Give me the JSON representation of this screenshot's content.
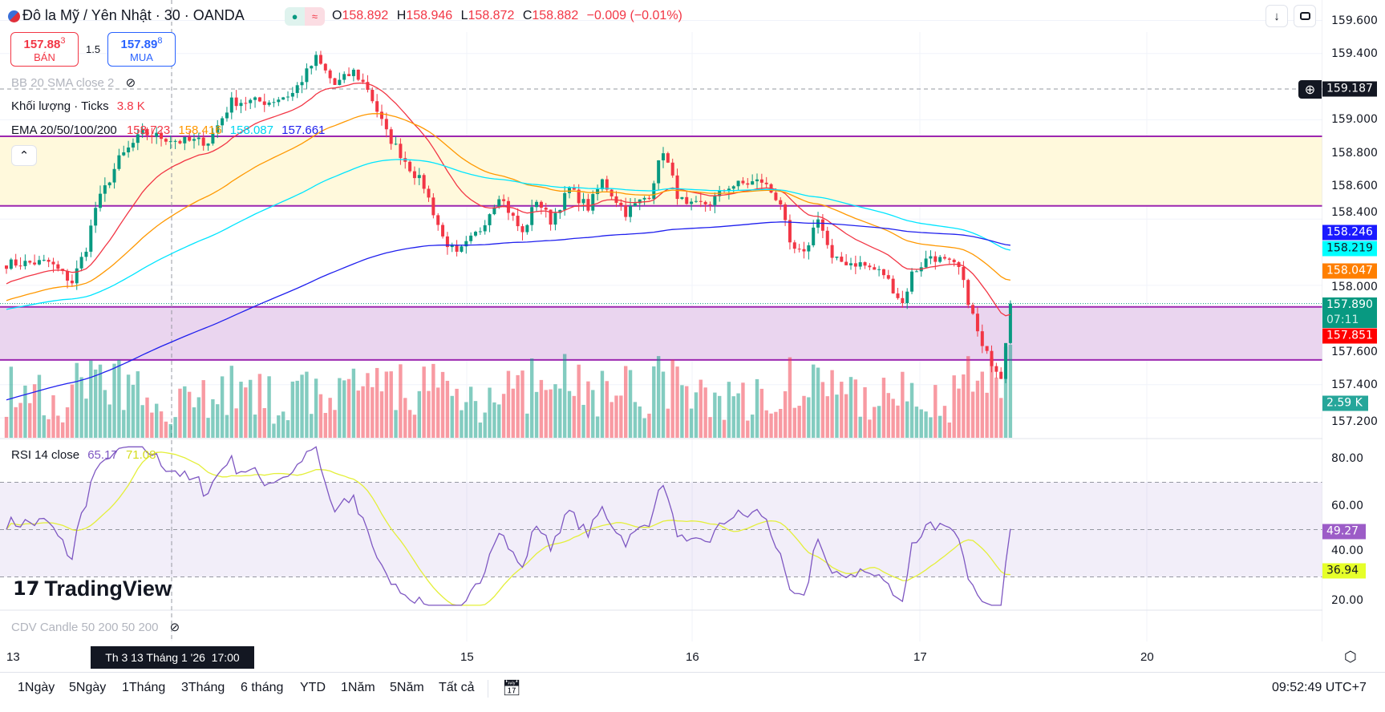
{
  "header": {
    "symbol_title": "Đô la Mỹ / Yên Nhật · 30 · OANDA",
    "ohlc": {
      "o_label": "O",
      "o": "158.892",
      "h_label": "H",
      "h": "158.946",
      "l_label": "L",
      "l": "158.872",
      "c_label": "C",
      "c": "158.882",
      "change": "−0.009 (−0.01%)"
    },
    "status_icons": [
      "market-open-dot-icon",
      "delayed-wave-icon"
    ]
  },
  "trade": {
    "sell_price_main": "157.88",
    "sell_price_sup": "3",
    "sell_label": "BÁN",
    "spread": "1.5",
    "buy_price_main": "157.89",
    "buy_price_sup": "8",
    "buy_label": "MUA"
  },
  "legends": {
    "bb": "BB 20 SMA close 2",
    "volume_name": "Khối lượng · Ticks",
    "volume_value": "3.8 K",
    "ema_name": "EMA 20/50/100/200",
    "ema_values": [
      "158.723",
      "158.416",
      "158.087",
      "157.661"
    ],
    "rsi_name": "RSI 14 close",
    "rsi_value": "65.17",
    "rsi_ma_value": "71.08",
    "cdv": "CDV Candle 50 200 50 200"
  },
  "price_axis": {
    "ticks": [
      "159.600",
      "159.400",
      "159.000",
      "158.800",
      "158.600",
      "158.400",
      "158.000",
      "157.600",
      "157.400",
      "157.200"
    ],
    "tick_values": [
      159.6,
      159.4,
      159.0,
      158.8,
      158.6,
      158.4,
      158.0,
      157.6,
      157.4,
      157.2
    ]
  },
  "badges": {
    "crosshair_price": "159.187",
    "ema200": "158.246",
    "ema100": "158.219",
    "ema50": "158.047",
    "last_price": "157.890",
    "countdown": "07:11",
    "ema20": "157.851",
    "volume": "2.59 K",
    "rsi": "49.27",
    "rsi_ma": "36.94"
  },
  "rsi_axis": {
    "ticks": [
      "80.00",
      "60.00",
      "40.00",
      "20.00"
    ],
    "tick_values": [
      80,
      60,
      40,
      20
    ],
    "upper_band": 70,
    "middle_band": 50,
    "lower_band": 30
  },
  "drawings": {
    "rectangles": [
      {
        "top": 158.9,
        "bottom": 158.48,
        "fill": "#fff9dc"
      },
      {
        "top": 157.87,
        "bottom": 157.55,
        "fill": "#ead5ef"
      }
    ],
    "line_color": "#9c27b0"
  },
  "colors": {
    "up": "#089981",
    "down": "#f23645",
    "ema20": "#f23645",
    "ema50": "#ff9800",
    "ema100": "#00e5ff",
    "ema200": "#2020ee",
    "rsi": "#7e57c2",
    "rsi_ma": "#e4ef3a"
  },
  "price_path": [
    [
      0,
      158.13
    ],
    [
      9,
      158.14
    ],
    [
      14,
      158.02
    ],
    [
      17,
      158.23
    ],
    [
      19,
      158.47
    ],
    [
      24,
      158.76
    ],
    [
      29,
      158.92
    ],
    [
      37,
      158.87
    ],
    [
      43,
      158.87
    ],
    [
      48,
      159.11
    ],
    [
      56,
      159.11
    ],
    [
      61,
      159.16
    ],
    [
      66,
      159.37
    ],
    [
      70,
      159.21
    ],
    [
      74,
      159.29
    ],
    [
      77,
      159.19
    ],
    [
      81,
      158.92
    ],
    [
      86,
      158.71
    ],
    [
      89,
      158.6
    ],
    [
      93,
      158.29
    ],
    [
      96,
      158.18
    ],
    [
      101,
      158.34
    ],
    [
      105,
      158.55
    ],
    [
      110,
      158.31
    ],
    [
      113,
      158.52
    ],
    [
      116,
      158.39
    ],
    [
      120,
      158.58
    ],
    [
      124,
      158.47
    ],
    [
      127,
      158.63
    ],
    [
      132,
      158.44
    ],
    [
      137,
      158.55
    ],
    [
      140,
      158.82
    ],
    [
      143,
      158.55
    ],
    [
      145,
      158.47
    ],
    [
      150,
      158.5
    ],
    [
      154,
      158.6
    ],
    [
      161,
      158.63
    ],
    [
      165,
      158.5
    ],
    [
      167,
      158.23
    ],
    [
      170,
      158.18
    ],
    [
      173,
      158.42
    ],
    [
      176,
      158.15
    ],
    [
      182,
      158.13
    ],
    [
      187,
      158.07
    ],
    [
      191,
      157.89
    ],
    [
      193,
      158.07
    ],
    [
      197,
      158.18
    ],
    [
      201,
      158.13
    ],
    [
      203,
      158.1
    ],
    [
      205,
      157.91
    ],
    [
      208,
      157.62
    ],
    [
      212,
      157.46
    ],
    [
      214,
      157.89
    ]
  ],
  "time_axis": {
    "labels": [
      "13",
      "15",
      "16",
      "17",
      "20"
    ],
    "crosshair_label": "Th 3 13 Tháng 1 '26  17:00"
  },
  "watermark": "TradingView",
  "toolbar": {
    "ranges": [
      "1Ngày",
      "5Ngày",
      "1Tháng",
      "3Tháng",
      "6 tháng",
      "YTD",
      "1Năm",
      "5Năm",
      "Tất cả"
    ],
    "clock": "09:52:49 UTC+7"
  }
}
